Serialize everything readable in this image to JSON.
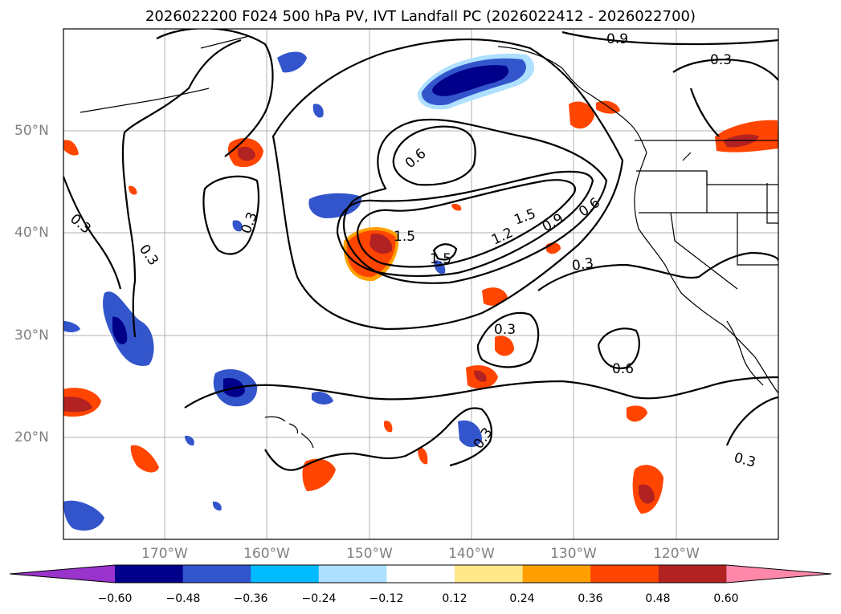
{
  "title": "2026022200 F024 500 hPa PV, IVT Landfall PC (2026022412 - 2026022700)",
  "latitude_labels": [
    "50°N",
    "40°N",
    "30°N",
    "20°N"
  ],
  "longitude_labels": [
    "170°W",
    "160°W",
    "150°W",
    "140°W",
    "130°W",
    "120°W"
  ],
  "contour_labels": [
    "0.9",
    "0.3",
    "0.6",
    "0.3",
    "0.3",
    "0.3",
    "1.5",
    "1.5",
    "1.5",
    "1.2",
    "0.9",
    "0.6",
    "0.3",
    "0.3",
    "0.6",
    "0.3",
    "0.3"
  ],
  "colorbar": {
    "tick_labels": [
      "−0.60",
      "−0.48",
      "−0.36",
      "−0.24",
      "−0.12",
      "0.12",
      "0.24",
      "0.36",
      "0.48",
      "0.60"
    ],
    "colors": [
      "#9933cc",
      "#00008b",
      "#3355cc",
      "#00bbff",
      "#aee0ff",
      "#ffffff",
      "#ffe88a",
      "#ffa000",
      "#ff4500",
      "#b22222",
      "#ff88aa"
    ]
  },
  "map_extent": {
    "lon": [
      "180°W",
      "110°W"
    ],
    "lat": [
      "10°N",
      "60°N"
    ]
  },
  "grid": true
}
